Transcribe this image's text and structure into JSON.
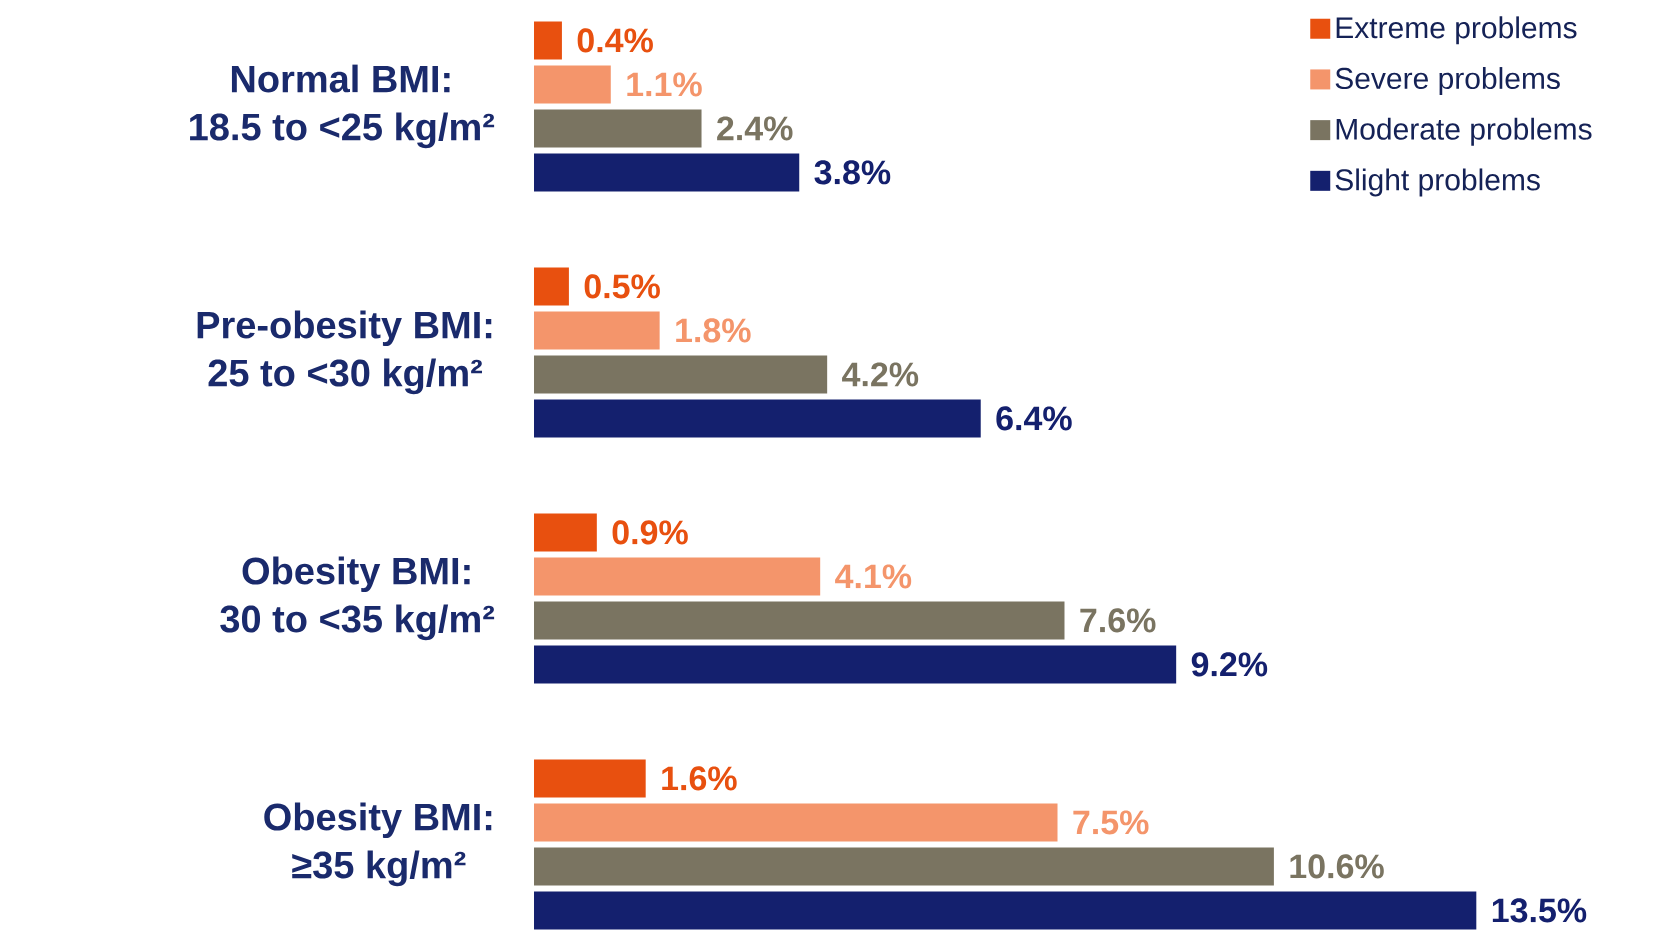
{
  "chart_data": {
    "type": "bar",
    "orientation": "horizontal",
    "legend": "top right",
    "categories": [
      "Normal BMI:\n18.5 to <25 kg/m²",
      "Pre-obesity BMI:\n25 to <30 kg/m²",
      "Obesity BMI:\n30 to <35 kg/m²",
      "Obesity BMI:\n≥35 kg/m²"
    ],
    "series": [
      {
        "name": "Extreme problems",
        "color": "#e8500f",
        "values": [
          0.4,
          0.5,
          0.9,
          1.6
        ],
        "value_labels": [
          "0.4%",
          "0.5%",
          "0.9%",
          "1.6%"
        ]
      },
      {
        "name": "Severe problems",
        "color": "#f4956b",
        "values": [
          1.1,
          1.8,
          4.1,
          7.5
        ],
        "value_labels": [
          "1.1%",
          "1.8%",
          "4.1%",
          "7.5%"
        ]
      },
      {
        "name": "Moderate problems",
        "color": "#7a7461",
        "values": [
          2.4,
          4.2,
          7.6,
          10.6
        ],
        "value_labels": [
          "2.4%",
          "4.2%",
          "7.6%",
          "10.6%"
        ]
      },
      {
        "name": "Slight problems",
        "color": "#14206e",
        "values": [
          3.8,
          6.4,
          9.2,
          13.5
        ],
        "value_labels": [
          "3.8%",
          "6.4%",
          "9.2%",
          "13.5%"
        ]
      }
    ]
  }
}
